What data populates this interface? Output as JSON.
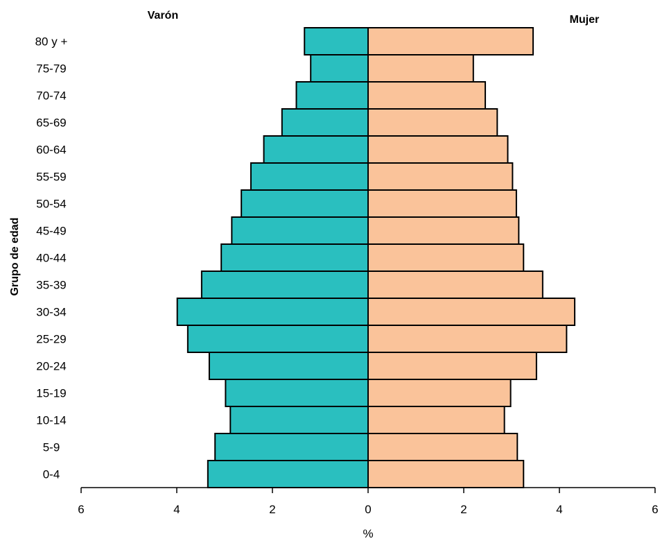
{
  "chart_data": {
    "type": "bar",
    "orientation": "horizontal",
    "subtype": "population-pyramid",
    "categories": [
      "0-4",
      "5-9",
      "10-14",
      "15-19",
      "20-24",
      "25-29",
      "30-34",
      "35-39",
      "40-44",
      "45-49",
      "50-54",
      "55-59",
      "60-64",
      "65-69",
      "70-74",
      "75-79",
      "80 y +"
    ],
    "series": [
      {
        "name": "Varón",
        "color": "#2ABFBF",
        "values": [
          3.35,
          3.2,
          2.88,
          2.98,
          3.32,
          3.77,
          3.99,
          3.48,
          3.07,
          2.85,
          2.65,
          2.45,
          2.18,
          1.8,
          1.5,
          1.2,
          1.33
        ]
      },
      {
        "name": "Mujer",
        "color": "#FAC39A",
        "values": [
          3.25,
          3.12,
          2.85,
          2.98,
          3.52,
          4.15,
          4.32,
          3.65,
          3.25,
          3.15,
          3.1,
          3.02,
          2.92,
          2.7,
          2.45,
          2.2,
          3.45
        ]
      }
    ],
    "xlabel": "%",
    "ylabel": "Grupo de edad",
    "xlim": [
      -6,
      6
    ],
    "xticks": [
      -6,
      -4,
      -2,
      0,
      2,
      4,
      6
    ],
    "xtick_labels": [
      "6",
      "4",
      "2",
      "0",
      "2",
      "4",
      "6"
    ],
    "grid": false,
    "legend": "none",
    "bar_outline_color": "#000000"
  }
}
